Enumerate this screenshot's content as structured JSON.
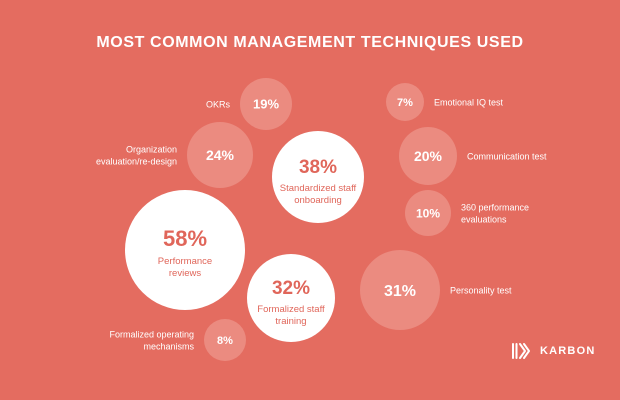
{
  "title": "MOST COMMON MANAGEMENT TECHNIQUES USED",
  "brand": {
    "name": "KARBON",
    "icon": "karbon-logo"
  },
  "colors": {
    "background": "#e46c60",
    "large_bubble_fill": "#ffffff",
    "small_bubble_fill": "#eb8b80",
    "value_on_white": "#e0665a",
    "value_on_tint": "#ffffff",
    "label_on_white": "#e0665a",
    "label_on_tint": "#ffffff"
  },
  "chart_data": {
    "type": "bubble",
    "title": "MOST COMMON MANAGEMENT TECHNIQUES USED",
    "unit": "%",
    "items": [
      {
        "label": "Performance reviews",
        "value": 58,
        "display": "58%"
      },
      {
        "label": "Standardized staff onboarding",
        "value": 38,
        "display": "38%"
      },
      {
        "label": "Formalized staff training",
        "value": 32,
        "display": "32%"
      },
      {
        "label": "Personality test",
        "value": 31,
        "display": "31%"
      },
      {
        "label": "Organization evaluation/re-design",
        "value": 24,
        "display": "24%"
      },
      {
        "label": "Communication test",
        "value": 20,
        "display": "20%"
      },
      {
        "label": "OKRs",
        "value": 19,
        "display": "19%"
      },
      {
        "label": "360 performance evaluations",
        "value": 10,
        "display": "10%"
      },
      {
        "label": "Formalized operating mechanisms",
        "value": 8,
        "display": "8%"
      },
      {
        "label": "Emotional IQ test",
        "value": 7,
        "display": "7%"
      }
    ]
  }
}
